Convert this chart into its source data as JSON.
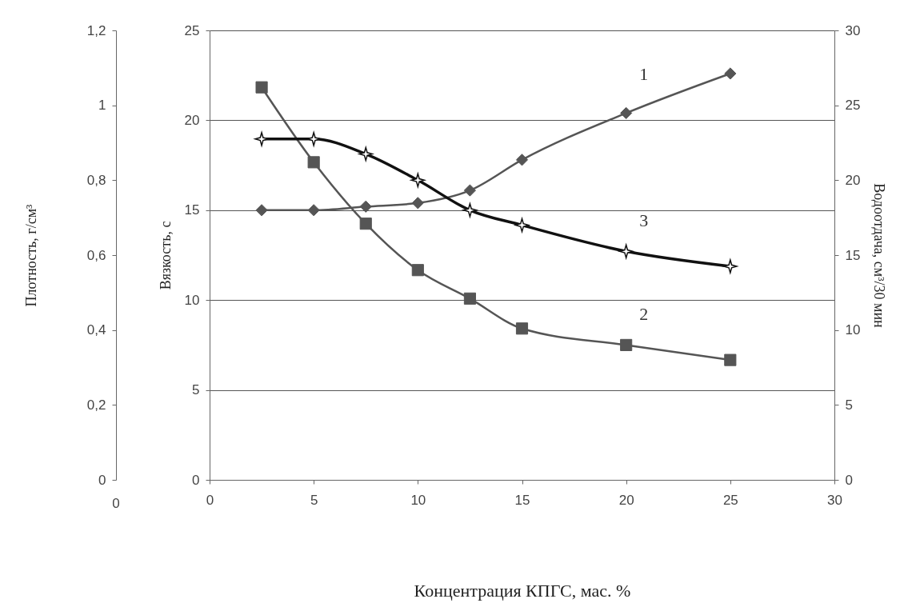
{
  "chart_data": {
    "type": "line",
    "xlabel": "Концентрация КПГС, мас. %",
    "ylabel": "Вязкость, с",
    "y2label": "Водоотдача, см³/30 мин",
    "y3label": "Плотность, г/см³",
    "x": [
      2.5,
      5,
      7.5,
      10,
      12.5,
      15,
      20,
      25
    ],
    "xlim": [
      0,
      30
    ],
    "xticks": [
      0,
      5,
      10,
      15,
      20,
      25,
      30
    ],
    "ylim": [
      0,
      25
    ],
    "yticks": [
      0,
      5,
      10,
      15,
      20,
      25
    ],
    "y2lim": [
      0,
      30
    ],
    "y2ticks": [
      0,
      5,
      10,
      15,
      20,
      25,
      30
    ],
    "y3lim": [
      0,
      1.2
    ],
    "y3ticks": [
      0,
      {
        "value": 0.2,
        "label": "0,2"
      },
      {
        "value": 0.4,
        "label": "0,4"
      },
      {
        "value": 0.6,
        "label": "0,6"
      },
      {
        "value": 0.8,
        "label": "0,8"
      },
      1,
      {
        "value": 1.2,
        "label": "1,2"
      }
    ],
    "series": [
      {
        "name": "1",
        "color": "#555555",
        "axis": "y",
        "marker": "diamond",
        "values": [
          15,
          15,
          15.2,
          15.4,
          16.1,
          17.8,
          20.4,
          22.6
        ]
      },
      {
        "name": "2",
        "color": "#555555",
        "axis": "y2",
        "marker": "square",
        "values": [
          26.2,
          21.2,
          17.1,
          14,
          12.1,
          10.1,
          9,
          8
        ]
      },
      {
        "name": "3",
        "color": "#111111",
        "axis": "y3",
        "marker": "star",
        "values": [
          0.91,
          0.91,
          0.87,
          0.8,
          0.72,
          0.68,
          0.61,
          0.57
        ]
      }
    ],
    "annotations": [
      "0"
    ],
    "grid": "y",
    "line_style": "solid"
  }
}
